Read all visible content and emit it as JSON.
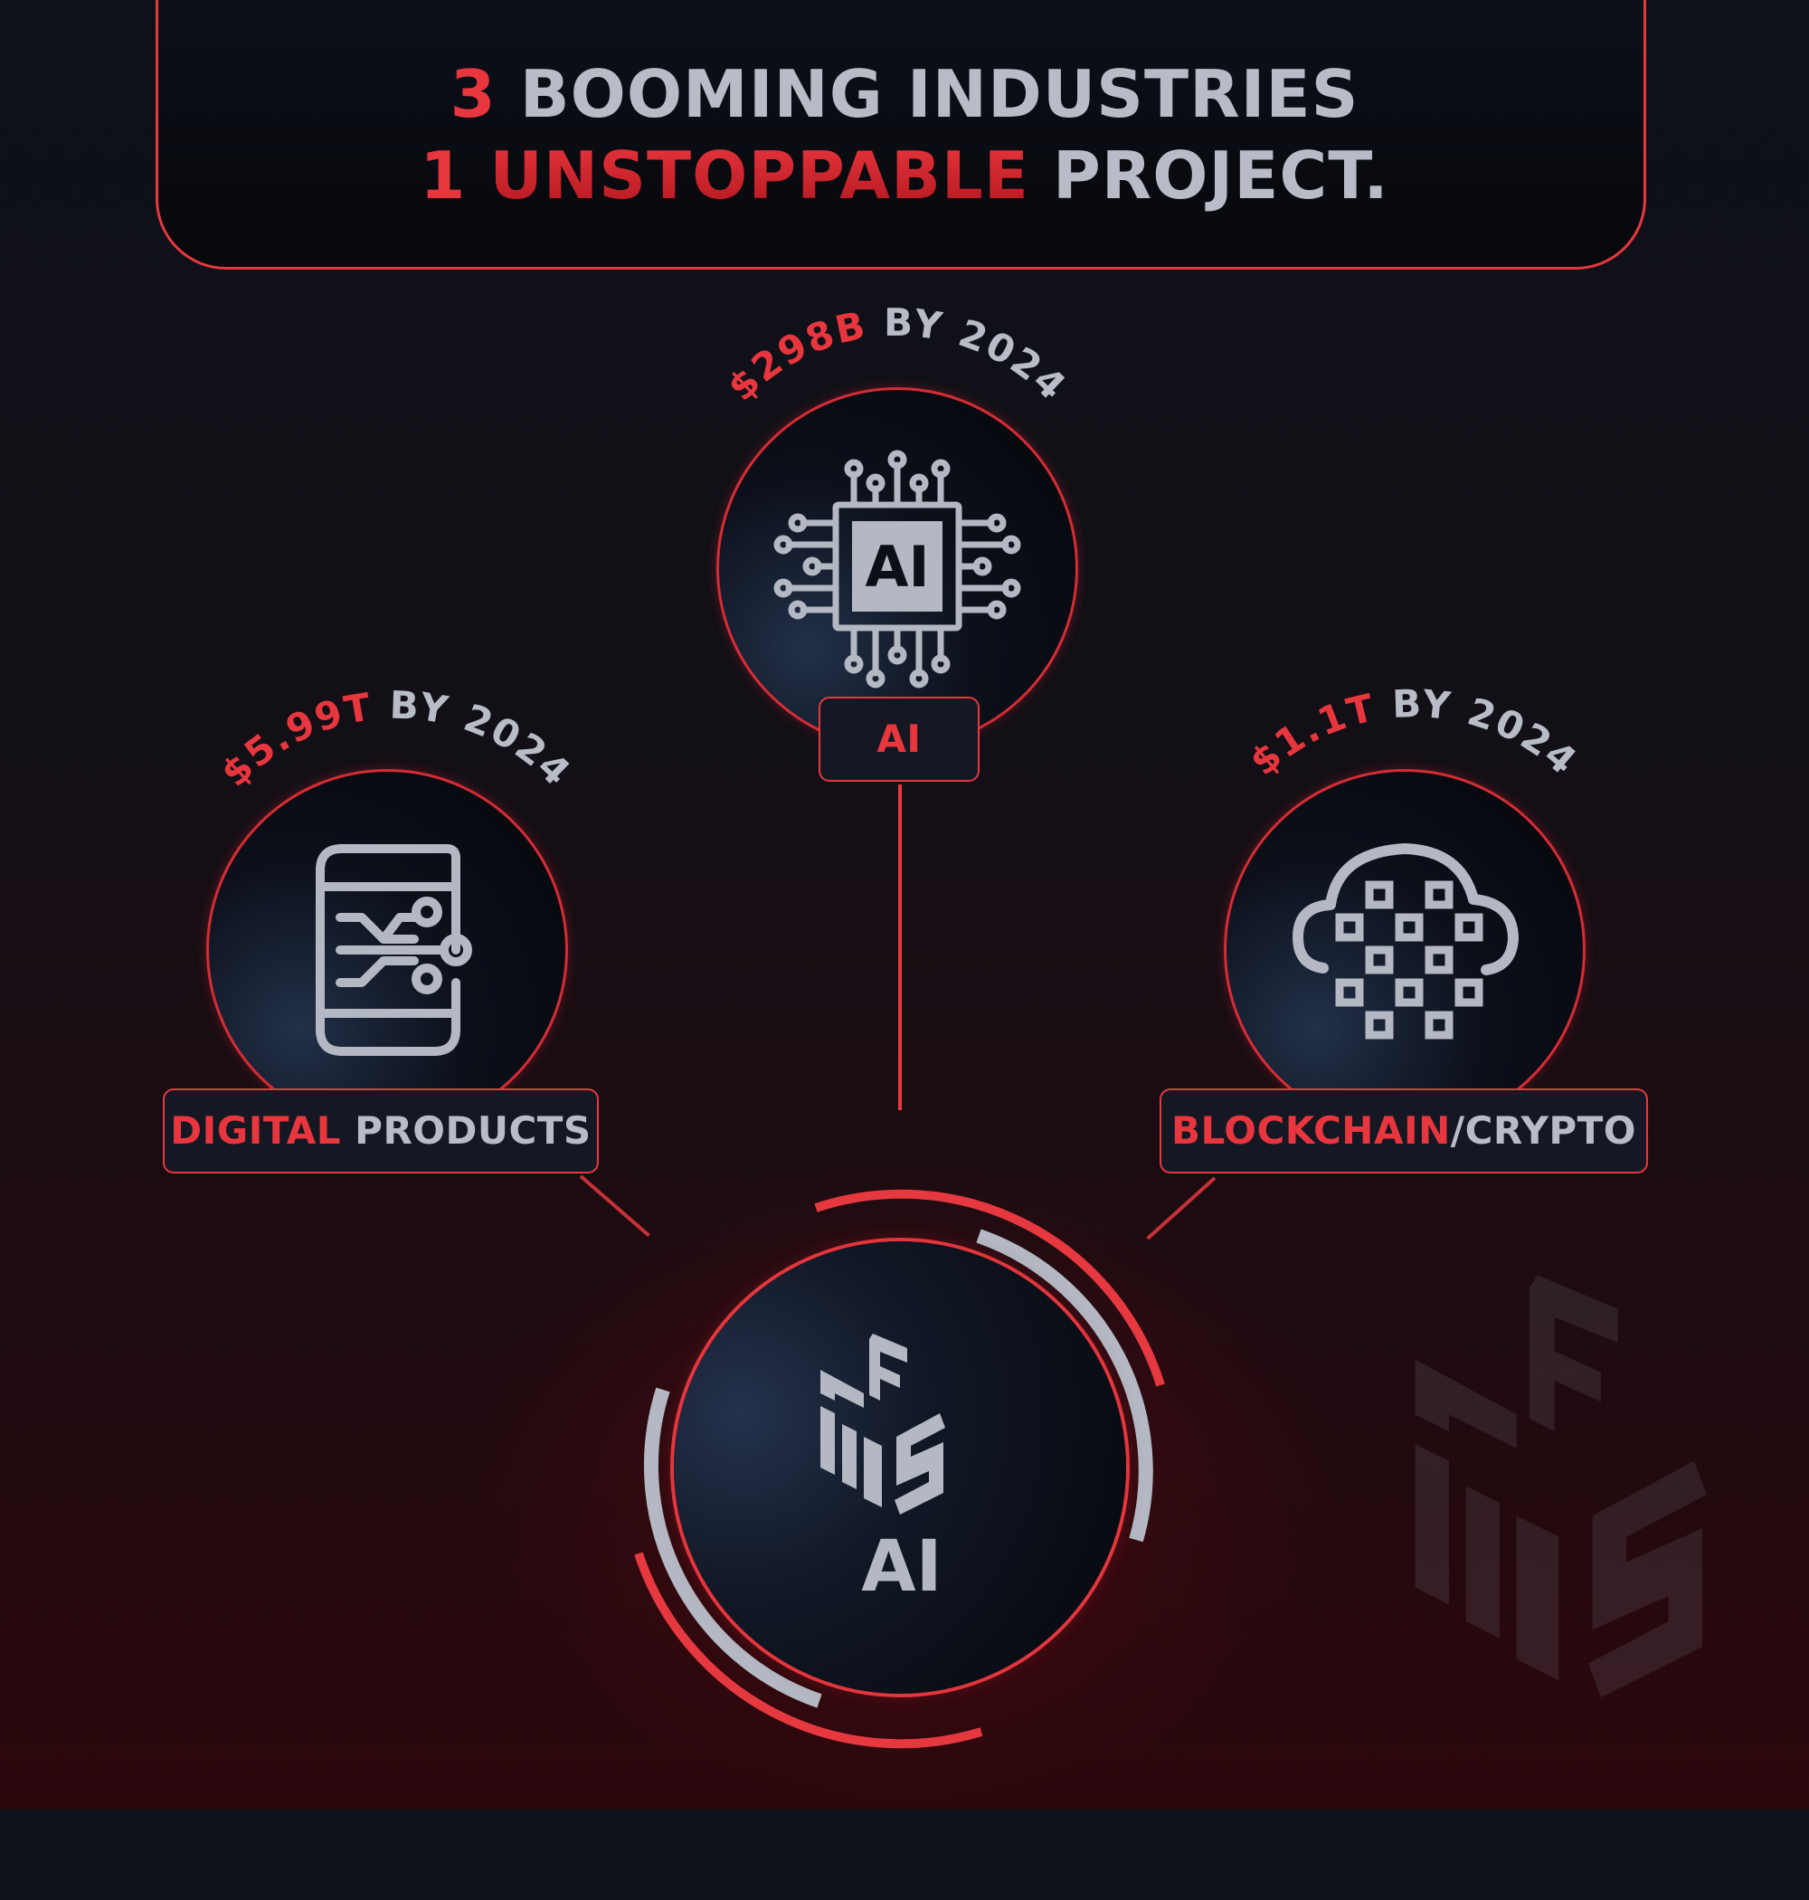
{
  "header": {
    "line1": {
      "num": "3",
      "rest": " BOOMING INDUSTRIES"
    },
    "line2": {
      "num": "1",
      "highlight": "UNSTOPPABLE",
      "rest": " PROJECT."
    }
  },
  "nodes": {
    "ai": {
      "value": "$298B",
      "suffix": " BY 2024",
      "label": "AI"
    },
    "digital": {
      "value": "$5.99T",
      "suffix": " BY 2024",
      "label_highlight": "DIGITAL",
      "label_rest": " PRODUCTS"
    },
    "blockchain": {
      "value": "$1.1T",
      "suffix": " BY 2024",
      "label_highlight": "BLOCKCHAIN",
      "label_rest": "/CRYPTO"
    }
  },
  "center": {
    "chip_text": "AI",
    "logo_text": "AI"
  },
  "colors": {
    "accent": "#e5383f",
    "text": "#b7bcc6",
    "background": "#0d1119"
  },
  "icons": [
    "ai-chip-icon",
    "digital-phone-circuit-icon",
    "cloud-blockchain-icon",
    "fms-ai-logo-icon"
  ]
}
